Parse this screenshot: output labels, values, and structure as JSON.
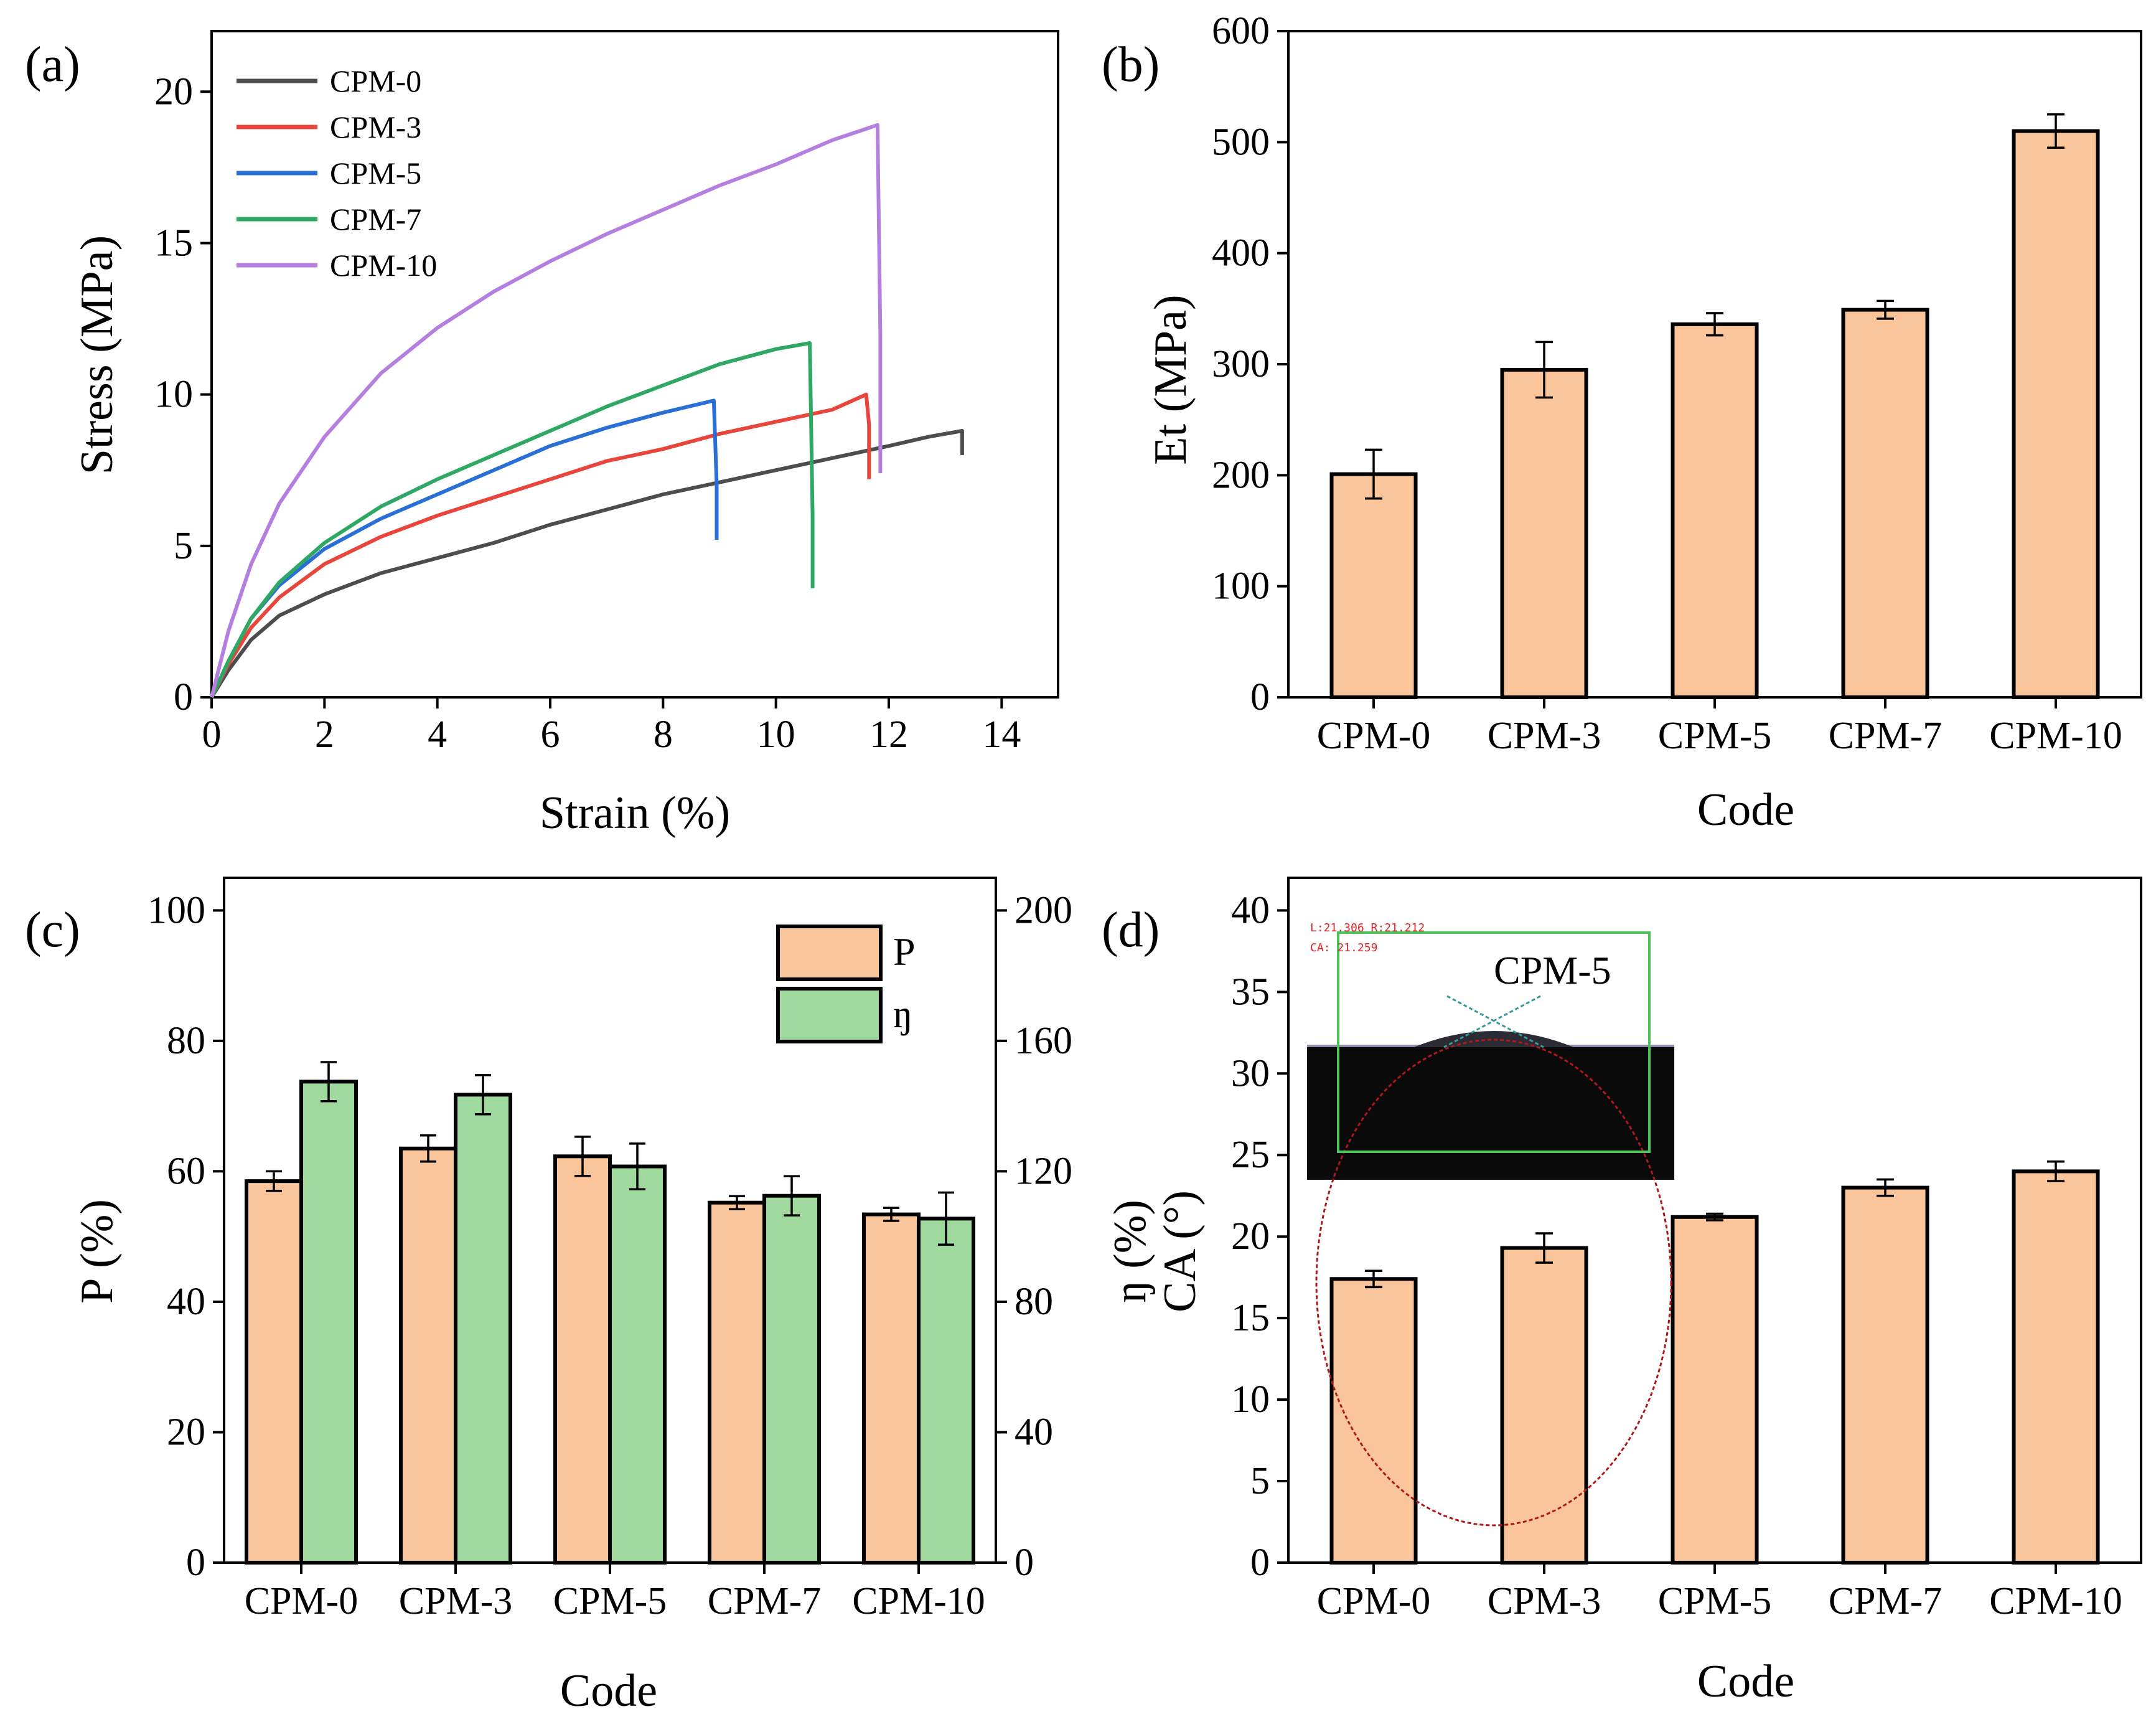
{
  "colors": {
    "bar_orange": "#FAC59A",
    "bar_green": "#9FD99E",
    "cpm0": "#4D4D4D",
    "cpm3": "#E8453C",
    "cpm5": "#2A6FD6",
    "cpm7": "#2FA864",
    "cpm10": "#B57FE0"
  },
  "chart_data": [
    {
      "id": "a",
      "label": "(a)",
      "type": "line",
      "xlabel": "Strain (%)",
      "ylabel": "Stress (MPa)",
      "xlim": [
        0,
        15
      ],
      "ylim": [
        0,
        22
      ],
      "xticks": [
        0,
        2,
        4,
        6,
        8,
        10,
        12,
        14
      ],
      "yticks": [
        0,
        5,
        10,
        15,
        20
      ],
      "legend": "top-left",
      "series": [
        {
          "name": "CPM-0",
          "color": "#4D4D4D",
          "x": [
            0,
            0.3,
            0.7,
            1.2,
            2,
            3,
            4,
            5,
            6,
            7,
            8,
            9,
            10,
            11,
            12,
            12.7,
            13.3,
            13.3
          ],
          "y": [
            0,
            0.9,
            1.9,
            2.7,
            3.4,
            4.1,
            4.6,
            5.1,
            5.7,
            6.2,
            6.7,
            7.1,
            7.5,
            7.9,
            8.3,
            8.6,
            8.8,
            8.0
          ]
        },
        {
          "name": "CPM-3",
          "color": "#E8453C",
          "x": [
            0,
            0.3,
            0.7,
            1.2,
            2,
            3,
            4,
            5,
            6,
            7,
            8,
            9,
            10,
            11,
            11.6,
            11.65,
            11.65
          ],
          "y": [
            0,
            1.1,
            2.3,
            3.3,
            4.4,
            5.3,
            6.0,
            6.6,
            7.2,
            7.8,
            8.2,
            8.7,
            9.1,
            9.5,
            10.0,
            9.0,
            7.2
          ]
        },
        {
          "name": "CPM-5",
          "color": "#2A6FD6",
          "x": [
            0,
            0.3,
            0.7,
            1.2,
            2,
            3,
            4,
            5,
            6,
            7,
            8,
            8.9,
            8.95,
            8.95
          ],
          "y": [
            0,
            1.2,
            2.6,
            3.7,
            4.9,
            5.9,
            6.7,
            7.5,
            8.3,
            8.9,
            9.4,
            9.8,
            7.0,
            5.2
          ]
        },
        {
          "name": "CPM-7",
          "color": "#2FA864",
          "x": [
            0,
            0.3,
            0.7,
            1.2,
            2,
            3,
            4,
            5,
            6,
            7,
            8,
            9,
            10,
            10.6,
            10.65,
            10.65
          ],
          "y": [
            0,
            1.2,
            2.6,
            3.8,
            5.1,
            6.3,
            7.2,
            8.0,
            8.8,
            9.6,
            10.3,
            11.0,
            11.5,
            11.7,
            6.0,
            3.6
          ]
        },
        {
          "name": "CPM-10",
          "color": "#B57FE0",
          "x": [
            0,
            0.3,
            0.7,
            1.2,
            2,
            3,
            4,
            5,
            6,
            7,
            8,
            9,
            10,
            11,
            11.8,
            11.85,
            11.85
          ],
          "y": [
            0,
            2.2,
            4.4,
            6.4,
            8.6,
            10.7,
            12.2,
            13.4,
            14.4,
            15.3,
            16.1,
            16.9,
            17.6,
            18.4,
            18.9,
            12.0,
            7.4
          ]
        }
      ]
    },
    {
      "id": "b",
      "label": "(b)",
      "type": "bar",
      "xlabel": "Code",
      "ylabel": "Et (MPa)",
      "categories": [
        "CPM-0",
        "CPM-3",
        "CPM-5",
        "CPM-7",
        "CPM-10"
      ],
      "values": [
        201,
        295,
        336,
        349,
        510
      ],
      "errors": [
        22,
        25,
        10,
        8,
        15
      ],
      "ylim": [
        0,
        600
      ],
      "yticks": [
        0,
        100,
        200,
        300,
        400,
        500,
        600
      ]
    },
    {
      "id": "c",
      "label": "(c)",
      "type": "bar",
      "xlabel": "Code",
      "ylabel": "P (%)",
      "y2label": "ŋ (%)",
      "categories": [
        "CPM-0",
        "CPM-3",
        "CPM-5",
        "CPM-7",
        "CPM-10"
      ],
      "ylim": [
        0,
        105
      ],
      "y2lim": [
        0,
        210
      ],
      "yticks": [
        0,
        20,
        40,
        60,
        80,
        100
      ],
      "y2ticks": [
        0,
        40,
        80,
        120,
        160,
        200
      ],
      "legend": "top-right",
      "series": [
        {
          "name": "P",
          "axis": "left",
          "color": "#FAC59A",
          "values": [
            58.5,
            63.5,
            62.3,
            55.2,
            53.4
          ],
          "errors": [
            1.5,
            2.0,
            3.0,
            1.0,
            1.0
          ]
        },
        {
          "name": "ŋ",
          "axis": "right",
          "color": "#9FD99E",
          "values": [
            147.5,
            143.5,
            121.5,
            112.5,
            105.5
          ],
          "errors": [
            6.0,
            6.0,
            7.0,
            6.0,
            8.0
          ]
        }
      ]
    },
    {
      "id": "d",
      "label": "(d)",
      "type": "bar",
      "xlabel": "Code",
      "ylabel": "CA (°)",
      "categories": [
        "CPM-0",
        "CPM-3",
        "CPM-5",
        "CPM-7",
        "CPM-10"
      ],
      "values": [
        17.4,
        19.3,
        21.2,
        23.0,
        24.0
      ],
      "errors": [
        0.5,
        0.9,
        0.2,
        0.5,
        0.6
      ],
      "ylim": [
        0,
        42
      ],
      "yticks": [
        0,
        5,
        10,
        15,
        20,
        25,
        30,
        35,
        40
      ],
      "inset": {
        "title": "CPM-5",
        "readout_line1": "L:21.306  R:21.212",
        "readout_line2": "CA:  21.259"
      }
    }
  ]
}
